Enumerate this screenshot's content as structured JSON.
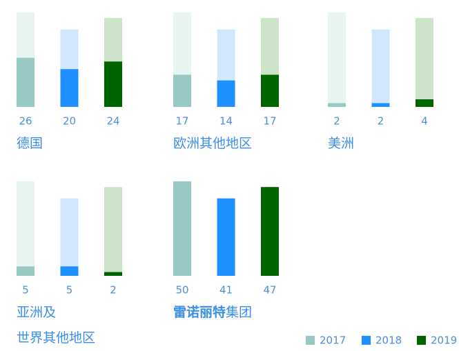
{
  "chart_data": [
    {
      "type": "bar",
      "title": [
        "德国"
      ],
      "values": [
        26,
        20,
        24
      ]
    },
    {
      "type": "bar",
      "title": [
        "欧洲其他地区"
      ],
      "values": [
        17,
        14,
        17
      ]
    },
    {
      "type": "bar",
      "title": [
        "美洲"
      ],
      "values": [
        2,
        2,
        4
      ]
    },
    {
      "type": "bar",
      "title": [
        "亚洲及",
        "世界其他地区"
      ],
      "values": [
        5,
        5,
        2
      ]
    },
    {
      "type": "bar",
      "title_bold": "雷诺丽特",
      "title": [
        "集团"
      ],
      "values": [
        50,
        41,
        47
      ]
    }
  ],
  "legend": {
    "series": [
      {
        "name": "2017",
        "color": "#99c9c5",
        "background": "#e8f4f1"
      },
      {
        "name": "2018",
        "color": "#1e90ff",
        "background": "#d2e7fc"
      },
      {
        "name": "2019",
        "color": "#006400",
        "background": "#cde4cb"
      }
    ]
  }
}
